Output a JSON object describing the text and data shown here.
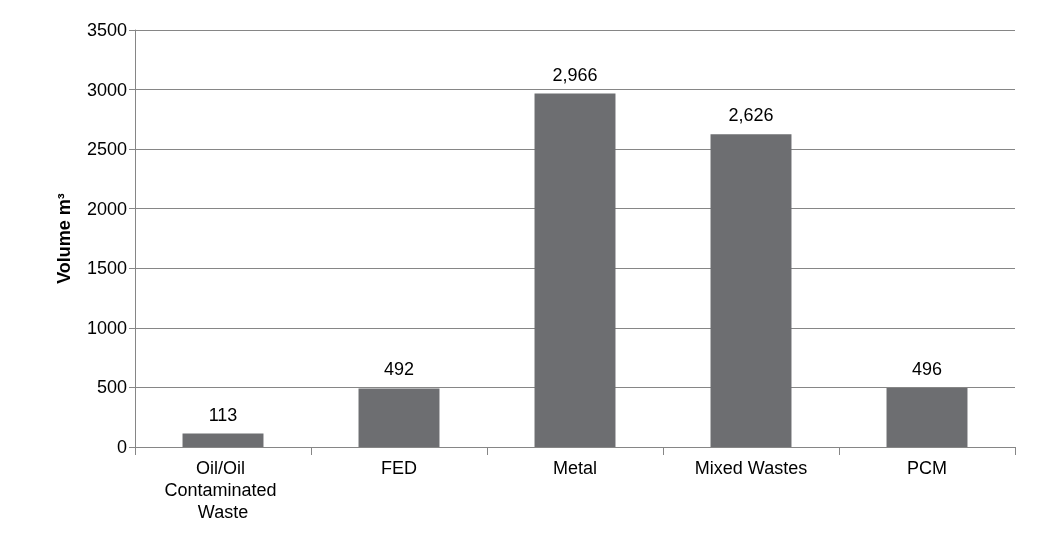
{
  "chart_data": {
    "type": "bar",
    "ylabel": "Volume m³",
    "categories": [
      "Oil/Oil Contaminated Waste",
      "FED",
      "Metal",
      "Mixed Wastes",
      "PCM"
    ],
    "values": [
      113,
      492,
      2966,
      2626,
      496
    ],
    "value_labels": [
      "113",
      "492",
      "2,966",
      "2,626",
      "496"
    ],
    "color": "#6d6e71",
    "ylim": [
      0,
      3500
    ],
    "yticks": [
      0,
      500,
      1000,
      1500,
      2000,
      2500,
      3000,
      3500
    ],
    "grid": "y"
  }
}
